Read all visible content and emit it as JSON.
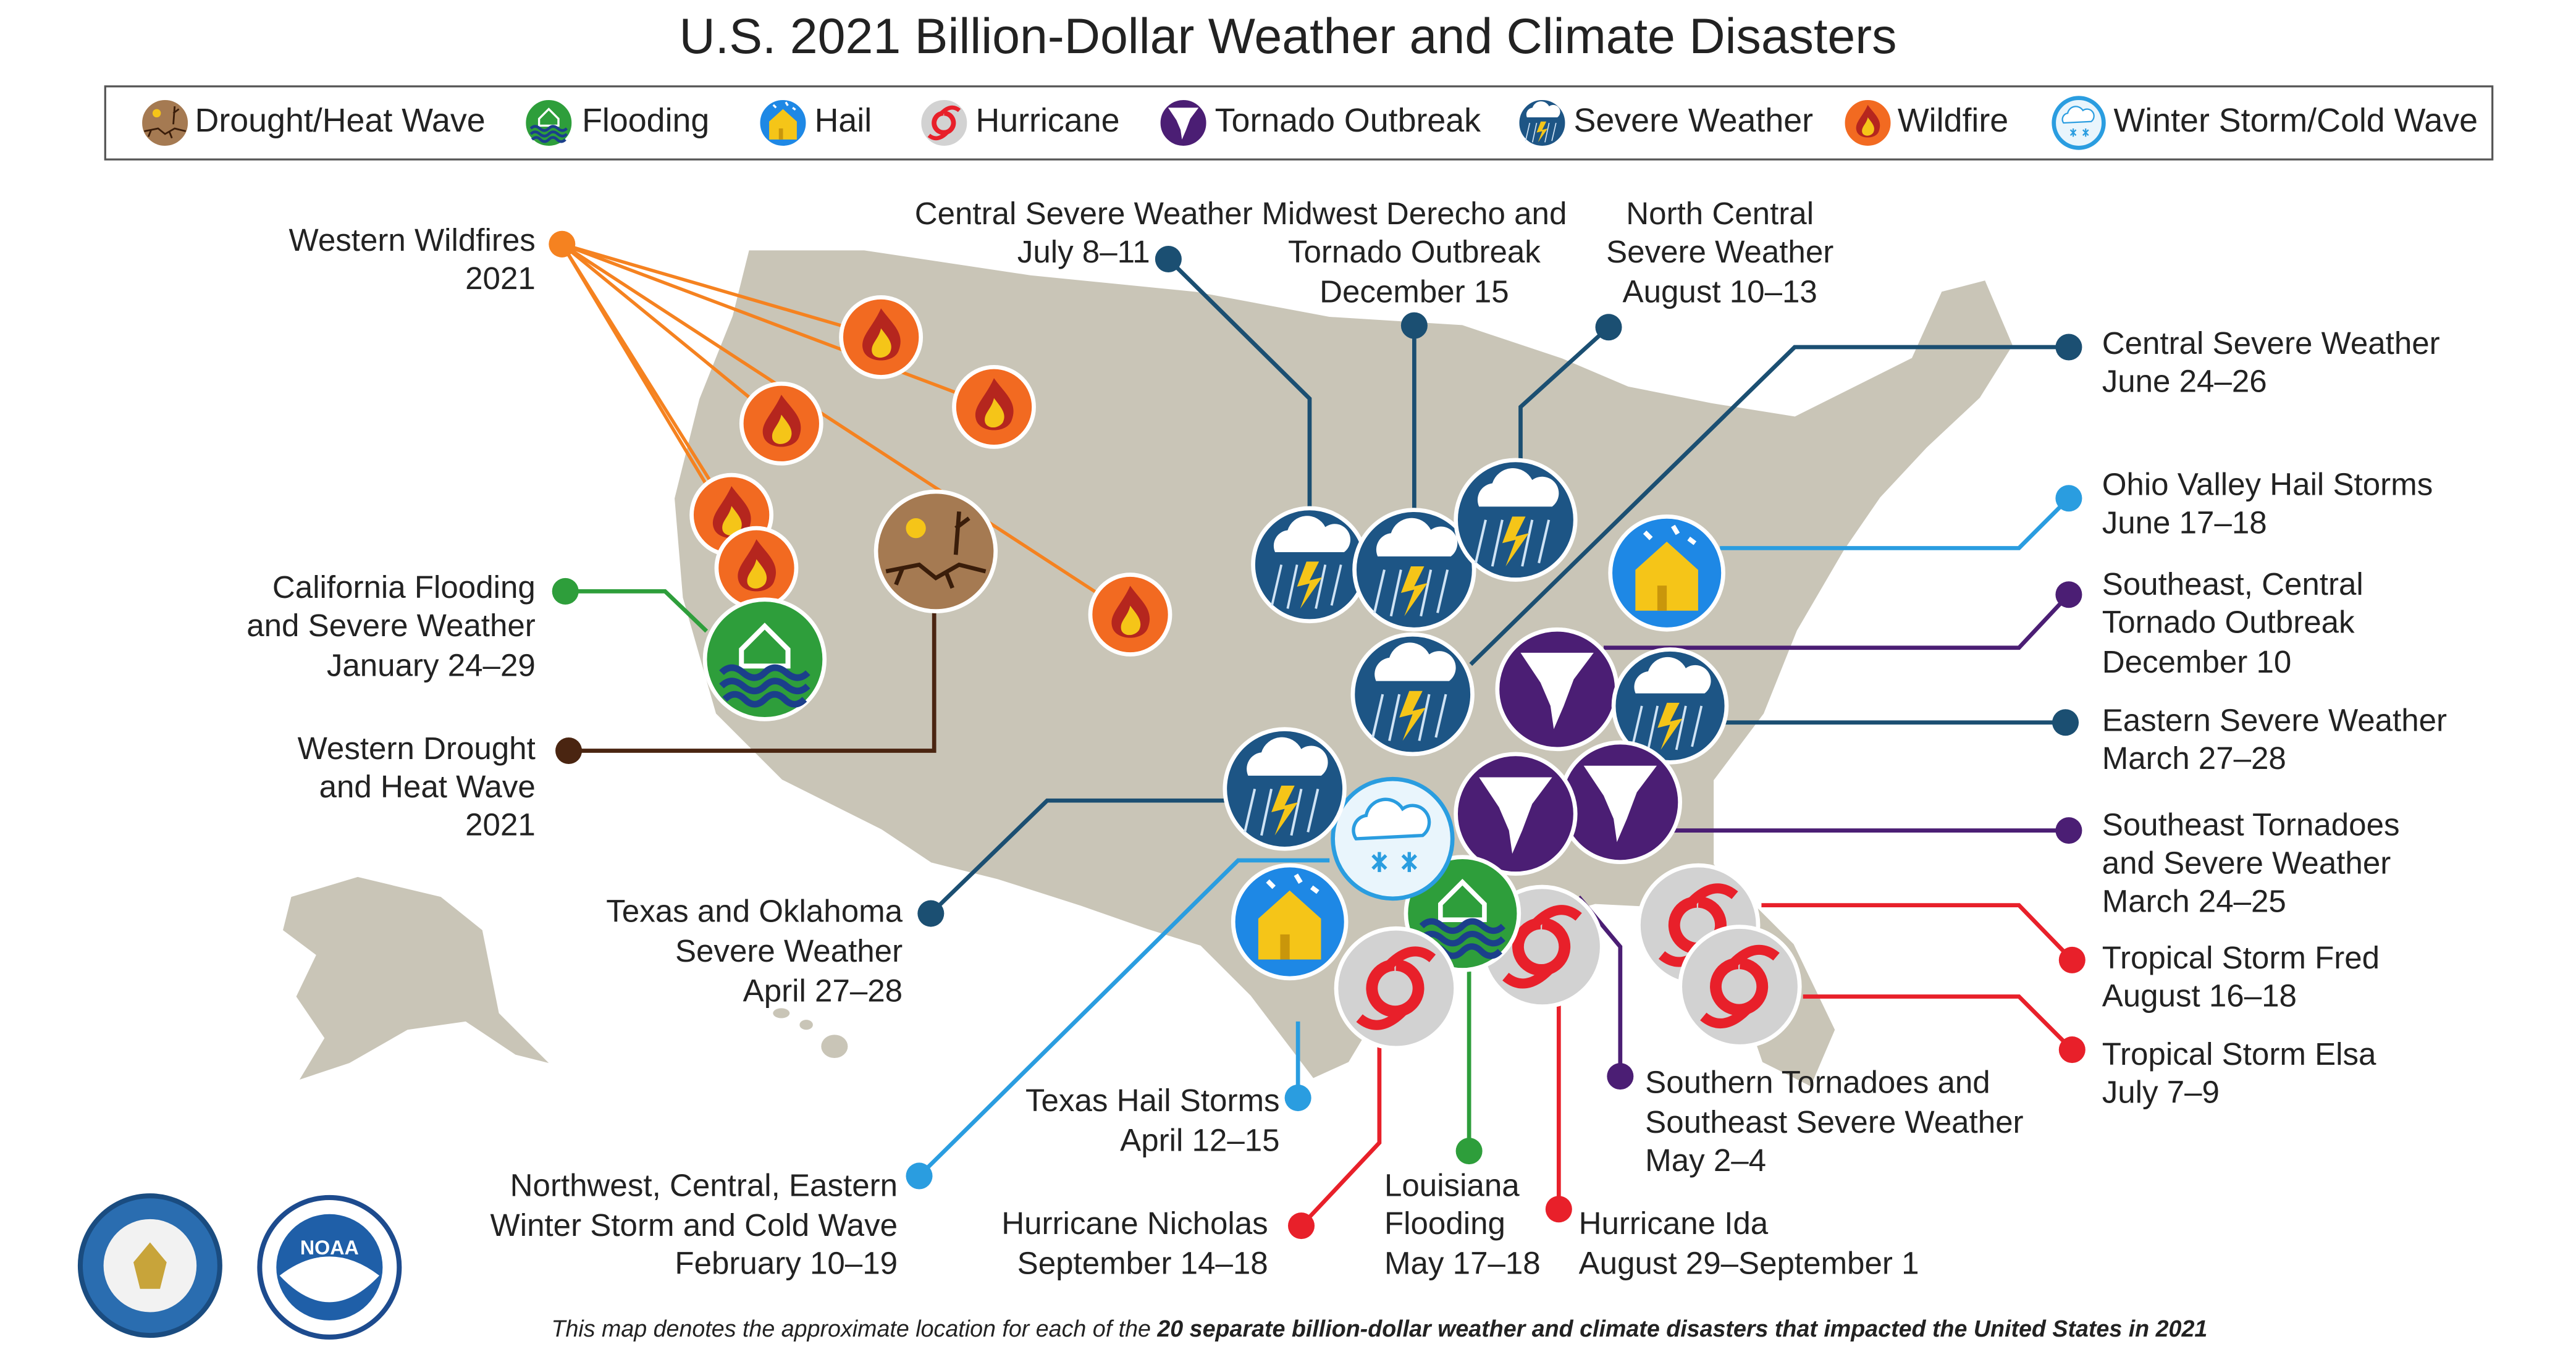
{
  "title": "U.S. 2021 Billion-Dollar Weather and Climate Disasters",
  "legend": [
    "Drought/Heat Wave",
    "Flooding",
    "Hail",
    "Hurricane",
    "Tornado Outbreak",
    "Severe Weather",
    "Wildfire",
    "Winter Storm/Cold Wave"
  ],
  "events": [
    {
      "label": [
        "Western Wildfires",
        "2021"
      ]
    },
    {
      "label": [
        "California Flooding",
        "and Severe Weather",
        "January 24–29"
      ]
    },
    {
      "label": [
        "Western Drought",
        "and Heat Wave",
        "2021"
      ]
    },
    {
      "label": [
        "Central Severe Weather",
        "July 8–11"
      ]
    },
    {
      "label": [
        "Midwest Derecho and",
        "Tornado Outbreak",
        "December 15"
      ]
    },
    {
      "label": [
        "North Central",
        "Severe Weather",
        "August 10–13"
      ]
    },
    {
      "label": [
        "Central Severe Weather",
        "June 24–26"
      ]
    },
    {
      "label": [
        "Ohio Valley Hail Storms",
        "June 17–18"
      ]
    },
    {
      "label": [
        "Southeast, Central",
        "Tornado Outbreak",
        "December 10"
      ]
    },
    {
      "label": [
        "Eastern Severe Weather",
        "March 27–28"
      ]
    },
    {
      "label": [
        "Southeast Tornadoes",
        "and Severe Weather",
        "March 24–25"
      ]
    },
    {
      "label": [
        "Tropical Storm Fred",
        "August 16–18"
      ]
    },
    {
      "label": [
        "Tropical Storm Elsa",
        "July 7–9"
      ]
    },
    {
      "label": [
        "Southern Tornadoes and",
        "Southeast Severe Weather",
        "May 2–4"
      ]
    },
    {
      "label": [
        "Hurricane Ida",
        "August 29–September 1"
      ]
    },
    {
      "label": [
        "Louisiana",
        "Flooding",
        "May 17–18"
      ]
    },
    {
      "label": [
        "Hurricane Nicholas",
        "September 14–18"
      ]
    },
    {
      "label": [
        "Texas Hail Storms",
        "April 12–15"
      ]
    },
    {
      "label": [
        "Northwest, Central, Eastern",
        "Winter Storm and Cold Wave",
        "February 10–19"
      ]
    },
    {
      "label": [
        "Texas and Oklahoma",
        "Severe Weather",
        "April 27–28"
      ]
    }
  ],
  "footer": {
    "text": "This map denotes the approximate location for each of the ",
    "bold": "20 separate billion-dollar weather and climate disasters that impacted the United States in 2021"
  },
  "logos": [
    "NOAA"
  ]
}
